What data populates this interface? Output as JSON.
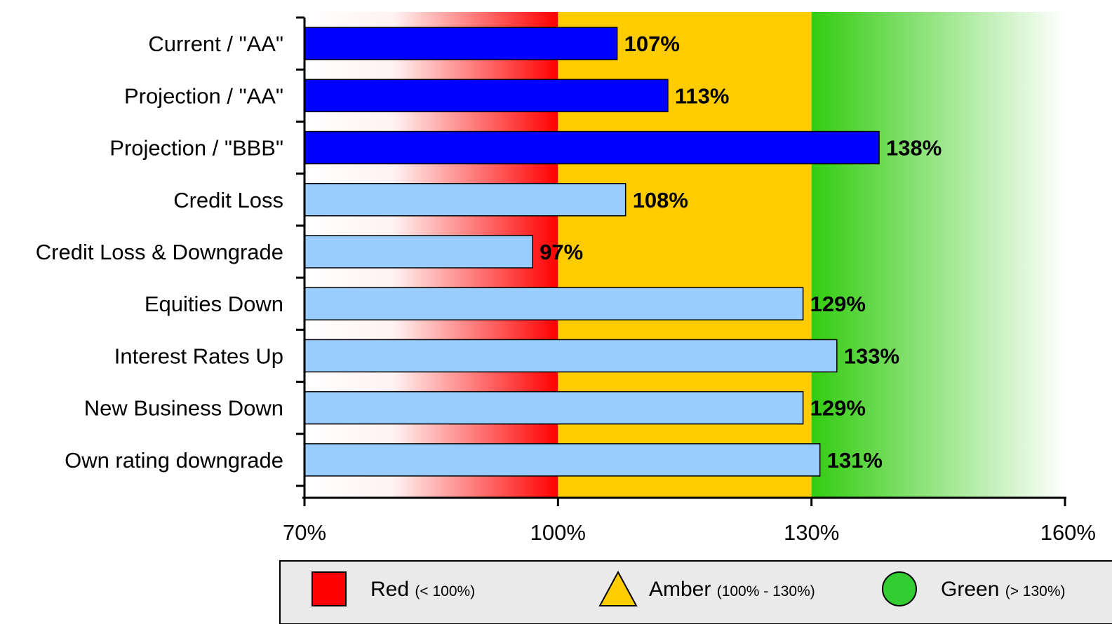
{
  "chart_data": {
    "type": "bar",
    "orientation": "horizontal",
    "categories": [
      "Current / \"AA\"",
      "Projection / \"AA\"",
      "Projection / \"BBB\"",
      "Credit Loss",
      "Credit Loss & Downgrade",
      "Equities Down",
      "Interest Rates Up",
      "New Business Down",
      "Own rating downgrade"
    ],
    "values": [
      107,
      113,
      138,
      108,
      97,
      129,
      133,
      129,
      131
    ],
    "value_labels": [
      "107%",
      "113%",
      "138%",
      "108%",
      "97%",
      "129%",
      "133%",
      "129%",
      "131%"
    ],
    "bar_colors": [
      "#0000ff",
      "#0000ff",
      "#0000ff",
      "#99ccff",
      "#99ccff",
      "#99ccff",
      "#99ccff",
      "#99ccff",
      "#99ccff"
    ],
    "xlim": [
      70,
      160
    ],
    "xticks": [
      70,
      100,
      130,
      160
    ],
    "xtick_labels": [
      "70%",
      "100%",
      "130%",
      "160%"
    ],
    "xlabel": "",
    "ylabel": "",
    "title": "",
    "zones": [
      {
        "name": "Red",
        "from": 70,
        "to": 100,
        "color": "#ff0000"
      },
      {
        "name": "Amber",
        "from": 100,
        "to": 130,
        "color": "#ffcc00"
      },
      {
        "name": "Green",
        "from": 130,
        "to": 160,
        "color": "#33cc33"
      }
    ],
    "legend": {
      "placement": "bottom",
      "items": [
        {
          "label": "Red",
          "range": "(< 100%)",
          "shape": "square",
          "color": "#ff0000"
        },
        {
          "label": "Amber",
          "range": "(100% - 130%)",
          "shape": "triangle",
          "color": "#ffcc00"
        },
        {
          "label": "Green",
          "range": "(> 130%)",
          "shape": "circle",
          "color": "#33cc33"
        }
      ]
    },
    "grid": false
  }
}
